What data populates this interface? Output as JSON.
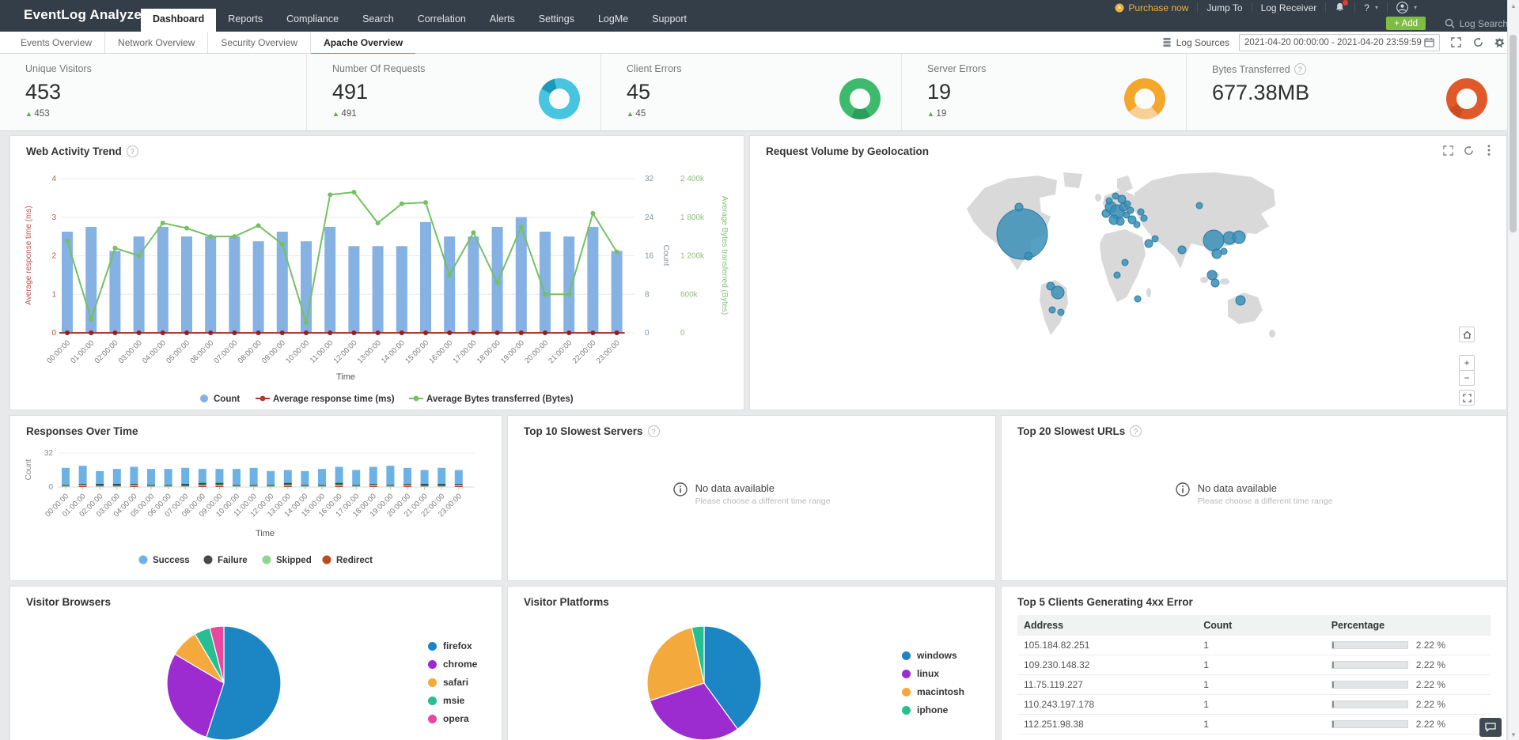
{
  "hours": [
    "00:00:00",
    "01:00:00",
    "02:00:00",
    "03:00:00",
    "04:00:00",
    "05:00:00",
    "06:00:00",
    "07:00:00",
    "08:00:00",
    "09:00:00",
    "10:00:00",
    "11:00:00",
    "12:00:00",
    "13:00:00",
    "14:00:00",
    "15:00:00",
    "16:00:00",
    "17:00:00",
    "18:00:00",
    "19:00:00",
    "20:00:00",
    "21:00:00",
    "22:00:00",
    "23:00:00"
  ],
  "nav": {
    "logo": "EventLog Analyzer",
    "items": [
      "Dashboard",
      "Reports",
      "Compliance",
      "Search",
      "Correlation",
      "Alerts",
      "Settings",
      "LogMe",
      "Support"
    ],
    "active": "Dashboard",
    "purchase": "Purchase now",
    "jump_to": "Jump To",
    "log_receiver": "Log Receiver",
    "help": "?",
    "add_label": "+ Add",
    "log_search": "Log Search"
  },
  "subtabs": {
    "items": [
      "Events Overview",
      "Network Overview",
      "Security Overview",
      "Apache Overview"
    ],
    "active": "Apache Overview"
  },
  "toolbar": {
    "log_sources": "Log Sources",
    "date_range": "2021-04-20 00:00:00 - 2021-04-20 23:59:59"
  },
  "stats": {
    "items": [
      {
        "label": "Unique Visitors",
        "value": "453",
        "delta": "453"
      },
      {
        "label": "Number Of Requests",
        "value": "491",
        "delta": "491",
        "donut": {
          "base": "#47c4df",
          "seg": "#1a9ab8",
          "from": 300,
          "sweep": 45
        }
      },
      {
        "label": "Client Errors",
        "value": "45",
        "delta": "45",
        "donut": {
          "base": "#3eba6d",
          "seg": "#2f9d5b",
          "from": 150,
          "sweep": 55
        }
      },
      {
        "label": "Server Errors",
        "value": "19",
        "delta": "19",
        "donut": {
          "base": "#f4a72b",
          "seg": "#f7d096",
          "from": 140,
          "sweep": 90
        }
      },
      {
        "label": "Bytes Transferred",
        "value": "677.38MB",
        "help": true,
        "donut": {
          "base": "#e0592a",
          "seg": "#cc4e20",
          "from": 200,
          "sweep": 40
        }
      }
    ]
  },
  "panels": {
    "web_activity": {
      "title": "Web Activity Trend",
      "help": true,
      "chart_data": {
        "type": "bar+line",
        "count": [
          21,
          22,
          17,
          20,
          22,
          20,
          20,
          20,
          19,
          21,
          19,
          22,
          18,
          18,
          18,
          23,
          20,
          20,
          22,
          24,
          21,
          20,
          22,
          17
        ],
        "avg_response_ms": [
          0,
          0,
          0,
          0,
          0,
          0,
          0,
          0,
          0,
          0,
          0,
          0,
          0,
          0,
          0,
          0,
          0,
          0,
          0,
          0,
          0,
          0,
          0,
          0
        ],
        "avg_bytes_k": [
          1430,
          210,
          1320,
          1200,
          1710,
          1630,
          1500,
          1500,
          1670,
          1380,
          160,
          2150,
          2190,
          1710,
          2010,
          2030,
          900,
          1560,
          780,
          1650,
          600,
          600,
          1860,
          1260
        ],
        "left_ticks": [
          "0",
          "1",
          "2",
          "3",
          "4"
        ],
        "count_ticks": [
          "0",
          "8",
          "16",
          "24",
          "32"
        ],
        "bytes_ticks": [
          "0",
          "600k",
          "1 200k",
          "1 800k",
          "2 400k"
        ],
        "left_label": "Average response time (ms)",
        "count_label": "Count",
        "bytes_label": "Average Bytes transferred (Bytes)",
        "x_label": "Time",
        "colors": {
          "bars": "#85b1e3",
          "response": "#b03a2e",
          "response_marker": "#7e2a22",
          "bytes": "#74c063"
        },
        "legend": [
          {
            "label": "Count",
            "color": "#85b1e3",
            "type": "circle"
          },
          {
            "label": "Average response time (ms)",
            "color": "#b03a2e",
            "type": "line"
          },
          {
            "label": "Average Bytes transferred (Bytes)",
            "color": "#74c063",
            "type": "line"
          }
        ]
      }
    },
    "geo": {
      "title": "Request Volume by Geolocation",
      "bubble_color": "#3a8fb7",
      "bubble_stroke": "#2a7ca3",
      "bubbles": [
        [
          76,
          84,
          32
        ],
        [
          72,
          50,
          5
        ],
        [
          84,
          112,
          5
        ],
        [
          112,
          150,
          5
        ],
        [
          121,
          158,
          8
        ],
        [
          114,
          180,
          4
        ],
        [
          125,
          183,
          4
        ],
        [
          182,
          58,
          5
        ],
        [
          188,
          50,
          7
        ],
        [
          196,
          56,
          9
        ],
        [
          204,
          50,
          5
        ],
        [
          192,
          66,
          6
        ],
        [
          200,
          68,
          5
        ],
        [
          208,
          60,
          4
        ],
        [
          186,
          42,
          4
        ],
        [
          194,
          36,
          4
        ],
        [
          202,
          40,
          5
        ],
        [
          209,
          46,
          4
        ],
        [
          213,
          54,
          4
        ],
        [
          215,
          66,
          5
        ],
        [
          221,
          72,
          4
        ],
        [
          226,
          56,
          4
        ],
        [
          230,
          64,
          4
        ],
        [
          300,
          48,
          4
        ],
        [
          236,
          96,
          5
        ],
        [
          244,
          90,
          4
        ],
        [
          278,
          104,
          5
        ],
        [
          318,
          92,
          13
        ],
        [
          338,
          89,
          8
        ],
        [
          350,
          88,
          8
        ],
        [
          322,
          109,
          6
        ],
        [
          331,
          106,
          4
        ],
        [
          316,
          136,
          6
        ],
        [
          320,
          146,
          5
        ],
        [
          352,
          168,
          6
        ],
        [
          196,
          136,
          4
        ],
        [
          222,
          166,
          4
        ],
        [
          206,
          120,
          4
        ]
      ]
    },
    "responses": {
      "title": "Responses Over Time",
      "chart_data": {
        "type": "stacked-bar",
        "y_ticks": [
          "0",
          "32"
        ],
        "y_max": 32,
        "y_label": "Count",
        "x_label": "Time",
        "series": [
          {
            "name": "Success",
            "color": "#6cb2e4",
            "values": [
              16,
              17,
              12,
              14,
              16,
              15,
              15,
              15,
              13,
              13,
              15,
              16,
              13,
              12,
              13,
              15,
              15,
              14,
              16,
              18,
              15,
              13,
              15,
              13
            ]
          },
          {
            "name": "Failure",
            "color": "#46494d",
            "values": [
              1,
              1,
              2,
              2,
              1,
              1,
              1,
              2,
              2,
              2,
              1,
              1,
              1,
              2,
              1,
              1,
              2,
              1,
              1,
              1,
              1,
              2,
              2,
              1
            ]
          },
          {
            "name": "Skipped",
            "color": "#8fd58b",
            "values": [
              1,
              1,
              1,
              1,
              1,
              1,
              1,
              1,
              1,
              1,
              1,
              1,
              1,
              1,
              1,
              1,
              1,
              1,
              1,
              1,
              1,
              1,
              1,
              1
            ]
          },
          {
            "name": "Redirect",
            "color": "#bf4a1f",
            "values": [
              0,
              1,
              0,
              0,
              1,
              0,
              0,
              0,
              1,
              1,
              0,
              0,
              0,
              1,
              0,
              0,
              1,
              0,
              1,
              0,
              1,
              0,
              0,
              1
            ]
          }
        ]
      }
    },
    "servers": {
      "title": "Top 10 Slowest Servers",
      "help": true,
      "empty": "No data available",
      "empty_sub": "Please choose a different time range"
    },
    "urls": {
      "title": "Top 20 Slowest URLs",
      "help": true,
      "empty": "No data available",
      "empty_sub": "Please choose a different time range"
    },
    "browsers": {
      "title": "Visitor Browsers",
      "chart_data": {
        "type": "pie",
        "slices": [
          {
            "label": "firefox",
            "value": 55,
            "color": "#1b86c3"
          },
          {
            "label": "chrome",
            "value": 28.5,
            "color": "#9c2bd0"
          },
          {
            "label": "safari",
            "value": 8,
            "color": "#f4a93c"
          },
          {
            "label": "msie",
            "value": 4.5,
            "color": "#27be92"
          },
          {
            "label": "opera",
            "value": 4,
            "color": "#e8489f"
          }
        ]
      }
    },
    "platforms": {
      "title": "Visitor Platforms",
      "chart_data": {
        "type": "pie",
        "slices": [
          {
            "label": "windows",
            "value": 40,
            "color": "#1b86c3"
          },
          {
            "label": "linux",
            "value": 30,
            "color": "#9c2bd0"
          },
          {
            "label": "macintosh",
            "value": 26.5,
            "color": "#f4a93c"
          },
          {
            "label": "iphone",
            "value": 3.5,
            "color": "#27be92"
          }
        ]
      }
    },
    "clients4xx": {
      "title": "Top 5 Clients Generating 4xx Error",
      "columns": [
        "Address",
        "Count",
        "Percentage"
      ],
      "rows": [
        [
          "105.184.82.251",
          "1",
          "2.22 %"
        ],
        [
          "109.230.148.32",
          "1",
          "2.22 %"
        ],
        [
          "11.75.119.227",
          "1",
          "2.22 %"
        ],
        [
          "110.243.197.178",
          "1",
          "2.22 %"
        ],
        [
          "112.251.98.38",
          "1",
          "2.22 %"
        ]
      ],
      "bar_pct": 2.22
    }
  }
}
